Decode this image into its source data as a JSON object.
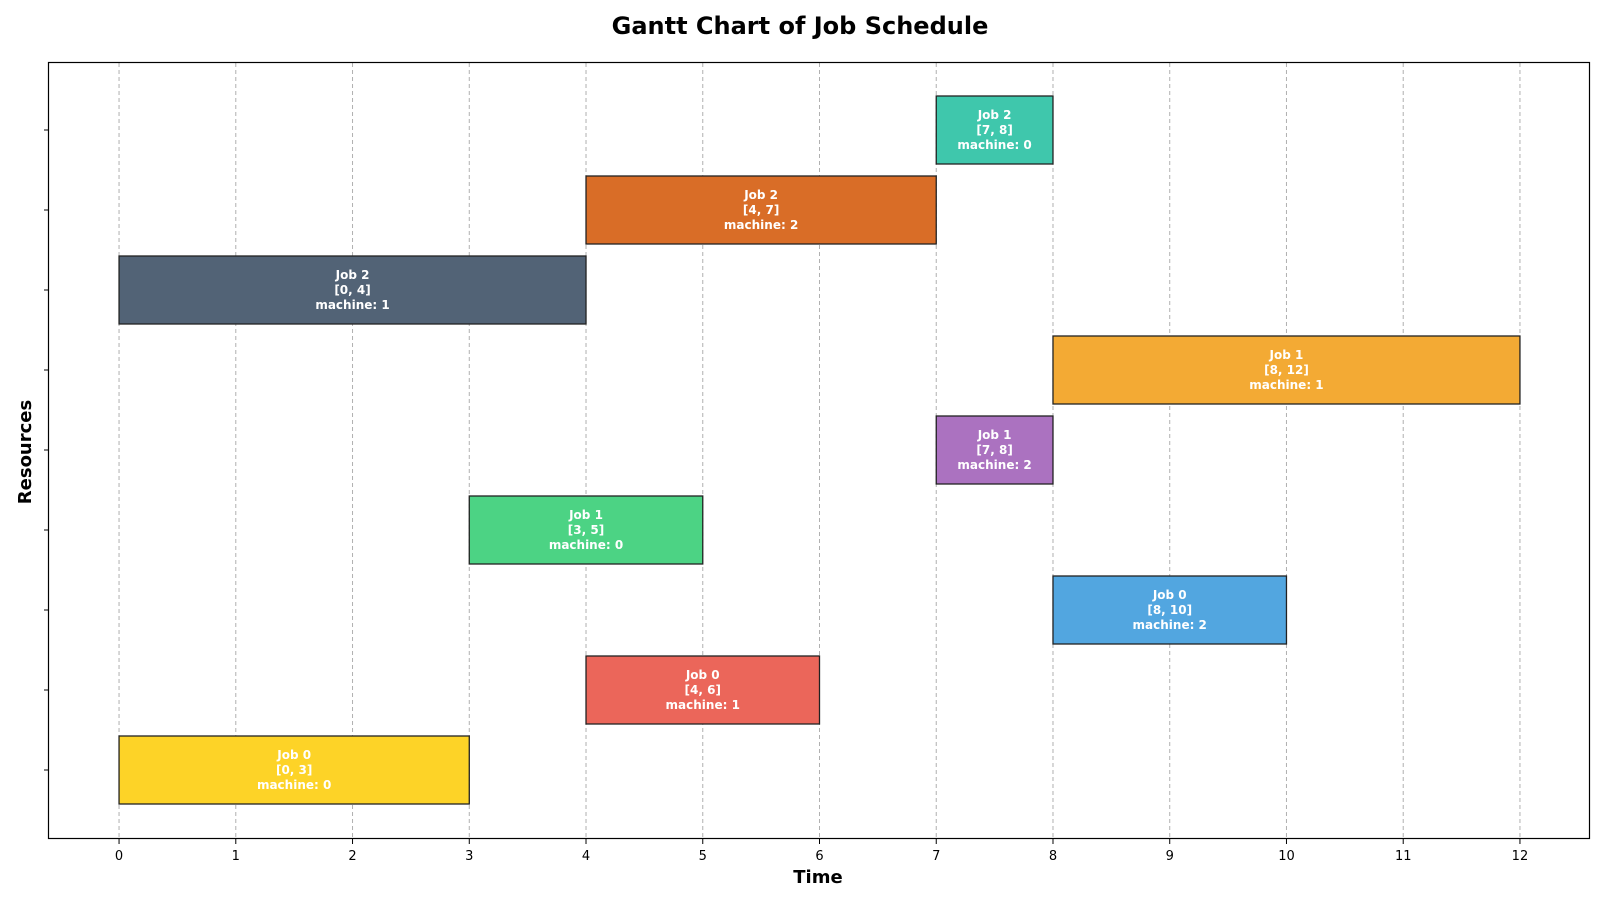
{
  "chart_data": {
    "type": "gantt",
    "title": "Gantt Chart of Job Schedule",
    "xlabel": "Time",
    "ylabel": "Resources",
    "xlim": [
      -0.6,
      12.6
    ],
    "xticks": [
      0,
      1,
      2,
      3,
      4,
      5,
      6,
      7,
      8,
      9,
      10,
      11,
      12
    ],
    "grid_x": true,
    "rows": 9,
    "tasks": [
      {
        "row": 0,
        "job": "Job 0",
        "start": 0,
        "end": 3,
        "interval": "[0, 3]",
        "machine": "machine: 0",
        "color": "#fdd327"
      },
      {
        "row": 1,
        "job": "Job 0",
        "start": 4,
        "end": 6,
        "interval": "[4, 6]",
        "machine": "machine: 1",
        "color": "#eb665a"
      },
      {
        "row": 2,
        "job": "Job 0",
        "start": 8,
        "end": 10,
        "interval": "[8, 10]",
        "machine": "machine: 2",
        "color": "#52a6e0"
      },
      {
        "row": 3,
        "job": "Job 1",
        "start": 3,
        "end": 5,
        "interval": "[3, 5]",
        "machine": "machine: 0",
        "color": "#4cd384"
      },
      {
        "row": 4,
        "job": "Job 1",
        "start": 7,
        "end": 8,
        "interval": "[7, 8]",
        "machine": "machine: 2",
        "color": "#ab72c0"
      },
      {
        "row": 5,
        "job": "Job 1",
        "start": 8,
        "end": 12,
        "interval": "[8, 12]",
        "machine": "machine: 1",
        "color": "#f3aa34"
      },
      {
        "row": 6,
        "job": "Job 2",
        "start": 0,
        "end": 4,
        "interval": "[0, 4]",
        "machine": "machine: 1",
        "color": "#526376"
      },
      {
        "row": 7,
        "job": "Job 2",
        "start": 4,
        "end": 7,
        "interval": "[4, 7]",
        "machine": "machine: 2",
        "color": "#d96d27"
      },
      {
        "row": 8,
        "job": "Job 2",
        "start": 7,
        "end": 8,
        "interval": "[7, 8]",
        "machine": "machine: 0",
        "color": "#3fc7ac"
      }
    ]
  }
}
